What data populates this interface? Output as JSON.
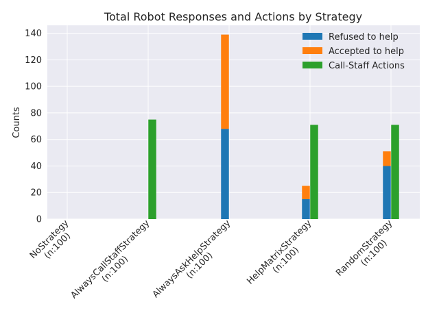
{
  "chart_data": {
    "type": "bar",
    "title": "Total Robot Responses and Actions by Strategy",
    "xlabel": "",
    "ylabel": "Counts",
    "ylim": [
      0,
      146
    ],
    "yticks": [
      0,
      20,
      40,
      60,
      80,
      100,
      120,
      140
    ],
    "categories": [
      [
        "NoStrategy",
        "(n:100)"
      ],
      [
        "AlwaysCallStaffStrategy",
        "(n:100)"
      ],
      [
        "AlwaysAskHelpStrategy",
        "(n:100)"
      ],
      [
        "HelpMatrixStrategy",
        "(n:100)"
      ],
      [
        "RandomStrategy",
        "(n:100)"
      ]
    ],
    "grid": true,
    "legend_position": "top-right",
    "series": [
      {
        "name": "Refused to help",
        "color": "#1f77b4",
        "group": "responses",
        "values": [
          0,
          0,
          68,
          15,
          40
        ]
      },
      {
        "name": "Accepted to help",
        "color": "#ff7f0e",
        "group": "responses",
        "stacked_on": "Refused to help",
        "values": [
          0,
          0,
          71,
          10,
          11
        ]
      },
      {
        "name": "Call-Staff Actions",
        "color": "#2ca02c",
        "group": "actions",
        "values": [
          0,
          75,
          0,
          71,
          71
        ]
      }
    ]
  }
}
